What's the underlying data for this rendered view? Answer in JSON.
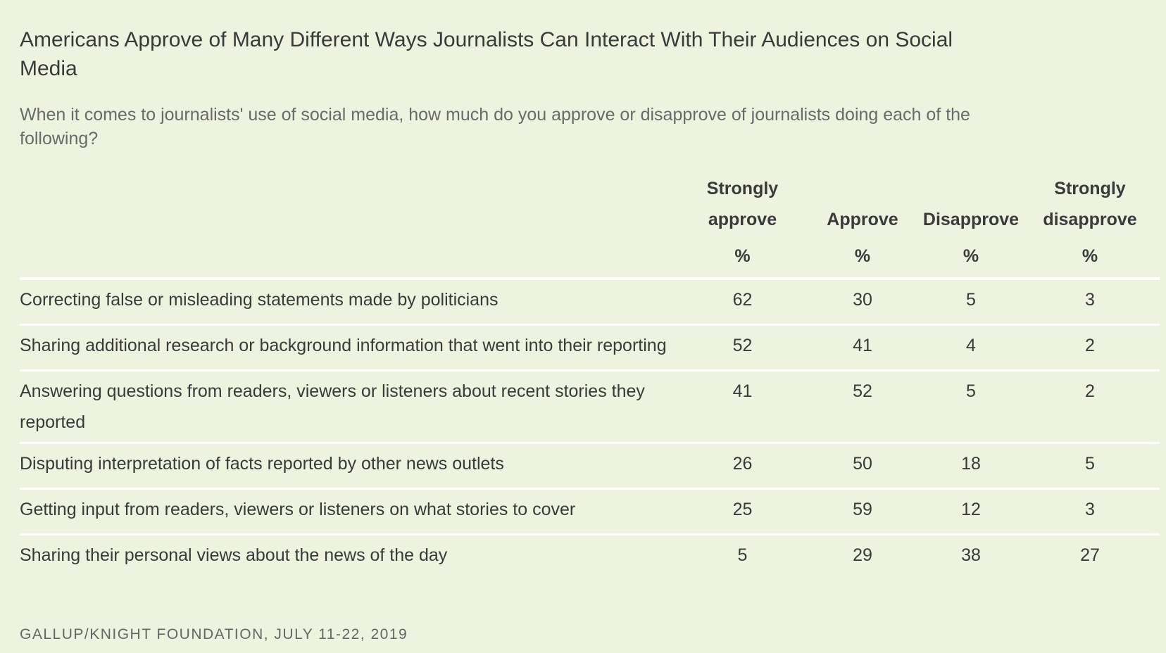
{
  "title": "Americans Approve of Many Different Ways Journalists Can Interact With Their Audiences on Social Media",
  "subtitle": "When it comes to journalists' use of social media, how much do you approve or disapprove of journalists doing each of the following?",
  "chart_data": {
    "type": "table",
    "columns": [
      {
        "line1": "Strongly",
        "line2": "approve",
        "unit": "%"
      },
      {
        "line1": "",
        "line2": "Approve",
        "unit": "%"
      },
      {
        "line1": "",
        "line2": "Disapprove",
        "unit": "%"
      },
      {
        "line1": "Strongly",
        "line2": "disapprove",
        "unit": "%"
      }
    ],
    "rows": [
      {
        "label": "Correcting false or misleading statements made by politicians",
        "values": [
          "62",
          "30",
          "5",
          "3"
        ]
      },
      {
        "label": "Sharing additional research or background information that went into their reporting",
        "values": [
          "52",
          "41",
          "4",
          "2"
        ]
      },
      {
        "label": "Answering questions from readers, viewers or listeners about recent stories they reported",
        "values": [
          "41",
          "52",
          "5",
          "2"
        ]
      },
      {
        "label": "Disputing interpretation of facts reported by other news outlets",
        "values": [
          "26",
          "50",
          "18",
          "5"
        ]
      },
      {
        "label": "Getting input from readers, viewers or listeners on what stories to cover",
        "values": [
          "25",
          "59",
          "12",
          "3"
        ]
      },
      {
        "label": "Sharing their personal views about the news of the day",
        "values": [
          "5",
          "29",
          "38",
          "27"
        ]
      }
    ]
  },
  "footer": "GALLUP/KNIGHT FOUNDATION, JULY 11-22, 2019",
  "colors": {
    "background": "#edf3df",
    "text": "#3a3a3a",
    "rule": "#ffffff"
  }
}
